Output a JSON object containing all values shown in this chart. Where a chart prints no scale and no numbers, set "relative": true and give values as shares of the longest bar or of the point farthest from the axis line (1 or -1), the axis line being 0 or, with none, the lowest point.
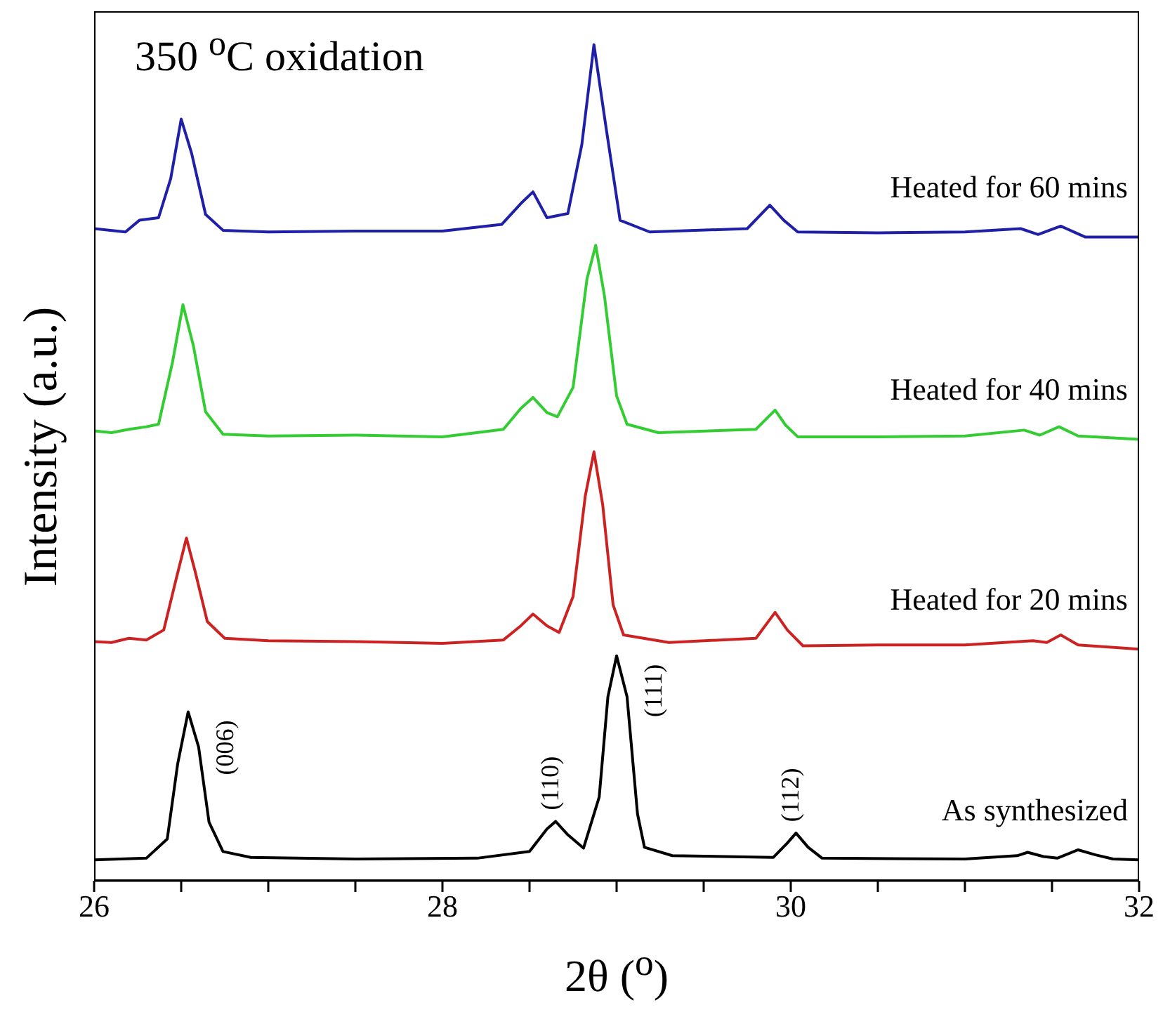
{
  "chart_data": {
    "type": "line",
    "title": "350 $^{o}$C oxidation",
    "xlabel": "2θ ($^{o}$)",
    "ylabel": "Intensity (a.u.)",
    "relative": true,
    "xlim": [
      26,
      32
    ],
    "xticks": [
      26,
      {
        "value": 26.5,
        "label": null
      },
      {
        "value": 27,
        "label": null
      },
      {
        "value": 27.5,
        "label": null
      },
      28,
      {
        "value": 28.5,
        "label": null
      },
      {
        "value": 29,
        "label": null
      },
      {
        "value": 29.5,
        "label": null
      },
      30,
      {
        "value": 30.5,
        "label": null
      },
      {
        "value": 31,
        "label": null
      },
      {
        "value": 31.5,
        "label": null
      },
      32
    ],
    "series": [
      {
        "name": "Heated for 60 mins",
        "color": "#1f1fa8",
        "x": [
          26,
          26.18,
          26.26,
          26.37,
          26.44,
          26.5,
          26.56,
          26.64,
          26.74,
          27,
          27.5,
          28,
          28.34,
          28.45,
          28.52,
          28.6,
          28.72,
          28.8,
          28.87,
          28.94,
          29.02,
          29.19,
          29.75,
          29.88,
          29.96,
          30.04,
          30.5,
          31,
          31.32,
          31.42,
          31.55,
          31.69,
          32
        ],
        "values": [
          0.78,
          0.776,
          0.79,
          0.793,
          0.84,
          0.911,
          0.87,
          0.797,
          0.778,
          0.776,
          0.777,
          0.777,
          0.785,
          0.81,
          0.824,
          0.793,
          0.798,
          0.88,
          1,
          0.9,
          0.79,
          0.776,
          0.78,
          0.808,
          0.79,
          0.776,
          0.775,
          0.776,
          0.78,
          0.773,
          0.783,
          0.77,
          0.77
        ]
      },
      {
        "name": "Heated for 40 mins",
        "color": "#33cc33",
        "x": [
          26,
          26.1,
          26.2,
          26.3,
          26.37,
          26.45,
          26.51,
          26.57,
          26.64,
          26.74,
          27,
          27.5,
          28,
          28.35,
          28.45,
          28.52,
          28.6,
          28.66,
          28.75,
          28.83,
          28.88,
          28.93,
          29,
          29.06,
          29.24,
          29.8,
          29.91,
          29.97,
          30.04,
          30.5,
          31,
          31.34,
          31.43,
          31.54,
          31.65,
          32
        ],
        "values": [
          0.538,
          0.536,
          0.54,
          0.543,
          0.546,
          0.62,
          0.689,
          0.64,
          0.561,
          0.534,
          0.532,
          0.533,
          0.531,
          0.54,
          0.565,
          0.578,
          0.56,
          0.555,
          0.59,
          0.72,
          0.76,
          0.7,
          0.58,
          0.546,
          0.536,
          0.54,
          0.563,
          0.545,
          0.531,
          0.531,
          0.532,
          0.539,
          0.533,
          0.543,
          0.532,
          0.528
        ]
      },
      {
        "name": "Heated for 20 mins",
        "color": "#cc2222",
        "x": [
          26,
          26.1,
          26.2,
          26.3,
          26.4,
          26.47,
          26.53,
          26.58,
          26.65,
          26.75,
          27,
          27.5,
          28,
          28.35,
          28.45,
          28.52,
          28.6,
          28.67,
          28.75,
          28.82,
          28.87,
          28.92,
          28.98,
          29.04,
          29.3,
          29.8,
          29.91,
          29.98,
          30.07,
          30.5,
          31,
          31.39,
          31.47,
          31.55,
          31.65,
          32
        ],
        "values": [
          0.286,
          0.285,
          0.29,
          0.288,
          0.3,
          0.36,
          0.41,
          0.37,
          0.31,
          0.29,
          0.287,
          0.286,
          0.284,
          0.288,
          0.305,
          0.319,
          0.305,
          0.297,
          0.34,
          0.46,
          0.513,
          0.45,
          0.33,
          0.294,
          0.285,
          0.29,
          0.321,
          0.3,
          0.281,
          0.282,
          0.282,
          0.287,
          0.285,
          0.294,
          0.282,
          0.277
        ]
      },
      {
        "name": "As synthesized",
        "color": "#000000",
        "x": [
          26,
          26.3,
          26.42,
          26.48,
          26.54,
          26.6,
          26.66,
          26.74,
          26.9,
          27.5,
          28.2,
          28.5,
          28.6,
          28.65,
          28.72,
          28.81,
          28.9,
          28.95,
          29,
          29.06,
          29.12,
          29.16,
          29.32,
          29.9,
          29.98,
          30.03,
          30.1,
          30.18,
          31,
          31.3,
          31.36,
          31.45,
          31.53,
          31.65,
          31.75,
          31.85,
          32
        ],
        "values": [
          0.025,
          0.027,
          0.05,
          0.14,
          0.202,
          0.16,
          0.07,
          0.035,
          0.028,
          0.026,
          0.027,
          0.035,
          0.062,
          0.071,
          0.055,
          0.039,
          0.1,
          0.22,
          0.269,
          0.22,
          0.08,
          0.04,
          0.03,
          0.028,
          0.045,
          0.057,
          0.04,
          0.027,
          0.026,
          0.03,
          0.034,
          0.029,
          0.027,
          0.037,
          0.031,
          0.026,
          0.025
        ]
      }
    ],
    "annotations": [
      {
        "text": "(006)",
        "x": 26.54,
        "y": 0.202
      },
      {
        "text": "(110)",
        "x": 28.65,
        "y": 0.071
      },
      {
        "text": "(111)",
        "x": 29,
        "y": 0.269
      },
      {
        "text": "(112)",
        "x": 30.03,
        "y": 0.057
      }
    ]
  }
}
